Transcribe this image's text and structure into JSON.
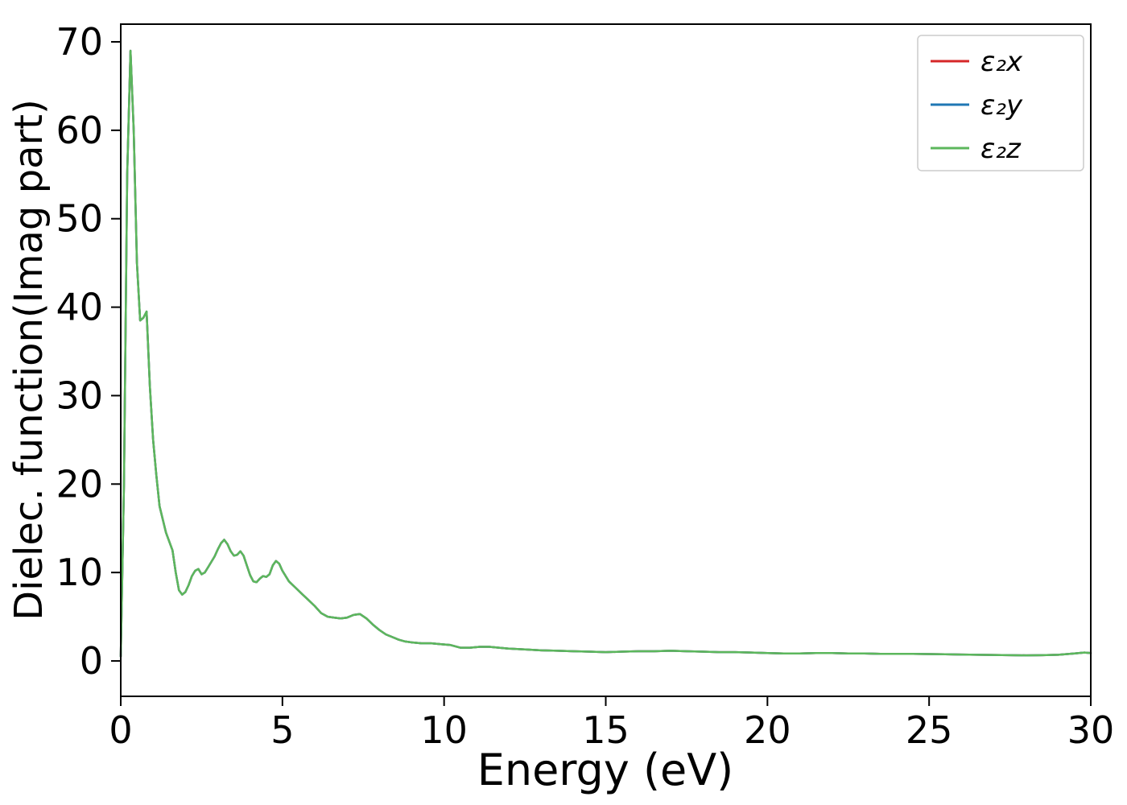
{
  "chart_data": {
    "type": "line",
    "title": "",
    "xlabel": "Energy (eV)",
    "ylabel": "Dielec. function(Imag part)",
    "xlim": [
      0,
      30
    ],
    "ylim": [
      -4,
      72
    ],
    "x_ticks": [
      0,
      5,
      10,
      15,
      20,
      25,
      30
    ],
    "y_ticks": [
      0,
      10,
      20,
      30,
      40,
      50,
      60,
      70
    ],
    "grid": false,
    "legend_position": "upper right",
    "note": "All three series (x, y, z components) overlap exactly; shared y values below, green (last drawn) is visible",
    "x": [
      0,
      0.1,
      0.2,
      0.3,
      0.4,
      0.5,
      0.6,
      0.7,
      0.8,
      0.9,
      1.0,
      1.1,
      1.2,
      1.4,
      1.6,
      1.7,
      1.8,
      1.9,
      2.0,
      2.1,
      2.2,
      2.3,
      2.4,
      2.5,
      2.6,
      2.7,
      2.8,
      2.9,
      3.0,
      3.1,
      3.2,
      3.3,
      3.4,
      3.5,
      3.6,
      3.7,
      3.8,
      3.9,
      4.0,
      4.1,
      4.2,
      4.3,
      4.4,
      4.5,
      4.6,
      4.7,
      4.8,
      4.9,
      5.0,
      5.2,
      5.4,
      5.6,
      5.8,
      6.0,
      6.2,
      6.4,
      6.6,
      6.8,
      7.0,
      7.2,
      7.4,
      7.6,
      7.8,
      8.0,
      8.2,
      8.4,
      8.6,
      8.8,
      9.0,
      9.3,
      9.6,
      9.9,
      10.2,
      10.5,
      10.8,
      11.1,
      11.4,
      11.7,
      12.0,
      12.5,
      13.0,
      13.5,
      14.0,
      14.5,
      15.0,
      15.5,
      16.0,
      16.5,
      17.0,
      17.5,
      18.0,
      18.5,
      19.0,
      19.5,
      20.0,
      20.5,
      21.0,
      21.5,
      22.0,
      22.5,
      23.0,
      23.5,
      24.0,
      24.5,
      25.0,
      25.5,
      26.0,
      26.5,
      27.0,
      27.5,
      28.0,
      28.5,
      29.0,
      29.5,
      29.8,
      30.0
    ],
    "y_shared": [
      0.5,
      20,
      55,
      69,
      60,
      45,
      38.5,
      38.8,
      39.5,
      31,
      25,
      21,
      17.5,
      14.5,
      12.5,
      10,
      8,
      7.5,
      7.8,
      8.6,
      9.6,
      10.2,
      10.4,
      9.8,
      10.0,
      10.6,
      11.2,
      11.8,
      12.6,
      13.3,
      13.7,
      13.2,
      12.4,
      11.9,
      12.0,
      12.4,
      11.9,
      10.8,
      9.7,
      9.0,
      8.9,
      9.3,
      9.6,
      9.5,
      9.8,
      10.8,
      11.3,
      11.0,
      10.2,
      9.0,
      8.3,
      7.6,
      6.9,
      6.2,
      5.4,
      5.0,
      4.9,
      4.8,
      4.9,
      5.2,
      5.3,
      4.8,
      4.1,
      3.5,
      3.0,
      2.7,
      2.4,
      2.2,
      2.1,
      2.0,
      2.0,
      1.9,
      1.8,
      1.5,
      1.5,
      1.6,
      1.6,
      1.5,
      1.4,
      1.3,
      1.2,
      1.15,
      1.1,
      1.05,
      1.0,
      1.05,
      1.1,
      1.1,
      1.15,
      1.1,
      1.05,
      1.0,
      1.0,
      0.95,
      0.9,
      0.85,
      0.85,
      0.9,
      0.9,
      0.85,
      0.85,
      0.8,
      0.8,
      0.8,
      0.78,
      0.75,
      0.72,
      0.7,
      0.68,
      0.65,
      0.63,
      0.65,
      0.7,
      0.85,
      0.95,
      0.9
    ],
    "series": [
      {
        "name": "ε₂x",
        "color": "#d62728"
      },
      {
        "name": "ε₂y",
        "color": "#1f77b4"
      },
      {
        "name": "ε₂z",
        "color": "#5cb75c"
      }
    ],
    "colors": {
      "spine": "#000000",
      "text": "#000000",
      "legend_border": "#cccccc",
      "background": "#ffffff"
    }
  }
}
